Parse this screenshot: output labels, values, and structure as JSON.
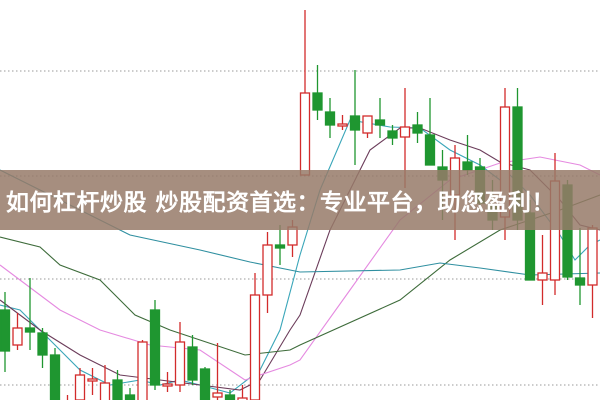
{
  "banner": {
    "title": "如何杠杆炒股 炒股配资首选：专业平台，助您盈利！"
  },
  "chart_data": {
    "type": "candlestick",
    "title": "",
    "xlabel": "",
    "ylabel": "",
    "ylim": [
      10,
      30
    ],
    "grid": true,
    "grid_levels": [
      26.45,
      21.2,
      16.05,
      10.75
    ],
    "colors": {
      "up": "#d22b2b",
      "down": "#1f9630",
      "grid": "#999999"
    },
    "candles": [
      {
        "o": 14.5,
        "h": 15.4,
        "l": 11.4,
        "c": 12.45
      },
      {
        "o": 12.75,
        "h": 14.35,
        "l": 12.5,
        "c": 13.6
      },
      {
        "o": 13.6,
        "h": 16.1,
        "l": 12.5,
        "c": 13.4
      },
      {
        "o": 13.35,
        "h": 13.6,
        "l": 11.6,
        "c": 12.25
      },
      {
        "o": 12.25,
        "h": 12.6,
        "l": 9.5,
        "c": 9.75
      },
      {
        "o": 9.5,
        "h": 10.25,
        "l": 9.25,
        "c": 9.9
      },
      {
        "o": 10,
        "h": 11.6,
        "l": 9.75,
        "c": 11.25
      },
      {
        "o": 10.95,
        "h": 11.6,
        "l": 10.25,
        "c": 11.05
      },
      {
        "o": 9.9,
        "h": 11.75,
        "l": 9.75,
        "c": 10.85
      },
      {
        "o": 11,
        "h": 11.5,
        "l": 9.75,
        "c": 9.9
      },
      {
        "o": 10.25,
        "h": 10.6,
        "l": 9.5,
        "c": 9.75
      },
      {
        "o": 9.9,
        "h": 13,
        "l": 9.75,
        "c": 12.9
      },
      {
        "o": 14.5,
        "h": 15,
        "l": 10.5,
        "c": 10.75
      },
      {
        "o": 10.7,
        "h": 11.4,
        "l": 10.4,
        "c": 10.8
      },
      {
        "o": 10.75,
        "h": 13.9,
        "l": 10.4,
        "c": 12.9
      },
      {
        "o": 12.65,
        "h": 13.25,
        "l": 10.75,
        "c": 11
      },
      {
        "o": 11.55,
        "h": 11.65,
        "l": 9.75,
        "c": 9.9
      },
      {
        "o": 10.15,
        "h": 12.85,
        "l": 9.9,
        "c": 10.35
      },
      {
        "o": 10.25,
        "h": 10.5,
        "l": 9.75,
        "c": 10
      },
      {
        "o": 9.75,
        "h": 10.75,
        "l": 9.5,
        "c": 10.1
      },
      {
        "o": 10,
        "h": 16.35,
        "l": 9.75,
        "c": 15.25
      },
      {
        "o": 15.25,
        "h": 18.4,
        "l": 14.35,
        "c": 17.75
      },
      {
        "o": 17.75,
        "h": 18.75,
        "l": 16.75,
        "c": 17.6
      },
      {
        "o": 17.75,
        "h": 19,
        "l": 17.15,
        "c": 18.65
      },
      {
        "o": 21.25,
        "h": 29.5,
        "l": 21.25,
        "c": 25.35
      },
      {
        "o": 25.35,
        "h": 26.75,
        "l": 24,
        "c": 24.5
      },
      {
        "o": 24.4,
        "h": 25.1,
        "l": 23.1,
        "c": 23.75
      },
      {
        "o": 23.7,
        "h": 24.25,
        "l": 23.5,
        "c": 23.8
      },
      {
        "o": 24.2,
        "h": 26.5,
        "l": 21.75,
        "c": 23.5
      },
      {
        "o": 23.35,
        "h": 24.2,
        "l": 23.1,
        "c": 24.2
      },
      {
        "o": 24,
        "h": 25.1,
        "l": 23.1,
        "c": 23.75
      },
      {
        "o": 23.45,
        "h": 23.75,
        "l": 22.75,
        "c": 23.1
      },
      {
        "o": 23.15,
        "h": 25.6,
        "l": 20.6,
        "c": 23.65
      },
      {
        "o": 23.75,
        "h": 24.4,
        "l": 22.85,
        "c": 23.35
      },
      {
        "o": 23.25,
        "h": 25.1,
        "l": 21.75,
        "c": 21.75
      },
      {
        "o": 21.65,
        "h": 22.5,
        "l": 19,
        "c": 21
      },
      {
        "o": 20.25,
        "h": 22.75,
        "l": 18,
        "c": 22.1
      },
      {
        "o": 21.9,
        "h": 23.25,
        "l": 21.25,
        "c": 21.5
      },
      {
        "o": 21.65,
        "h": 22.1,
        "l": 19.5,
        "c": 19.85
      },
      {
        "o": 19.75,
        "h": 21,
        "l": 18.5,
        "c": 19
      },
      {
        "o": 19.15,
        "h": 25.6,
        "l": 18,
        "c": 24.65
      },
      {
        "o": 24.65,
        "h": 25.6,
        "l": 18.5,
        "c": 19
      },
      {
        "o": 19.35,
        "h": 20,
        "l": 16,
        "c": 16
      },
      {
        "o": 16,
        "h": 18.25,
        "l": 14.75,
        "c": 16.35
      },
      {
        "o": 16,
        "h": 22.35,
        "l": 15.25,
        "c": 20.95
      },
      {
        "o": 20.75,
        "h": 21,
        "l": 16,
        "c": 16.15
      },
      {
        "o": 16.1,
        "h": 18.6,
        "l": 14.75,
        "c": 15.75
      },
      {
        "o": 15.75,
        "h": 18.75,
        "l": 14.1,
        "c": 18.6
      }
    ],
    "moving_averages": [
      {
        "color": "#3aa6b9",
        "points": [
          [
            -0.4,
            14.75
          ],
          [
            1.2,
            14.5
          ],
          [
            3.6,
            13
          ],
          [
            6,
            11.5
          ],
          [
            8.4,
            10.75
          ],
          [
            10.8,
            11
          ],
          [
            12.4,
            10.75
          ],
          [
            14,
            11
          ],
          [
            15.6,
            10.75
          ],
          [
            18,
            10.35
          ],
          [
            20.4,
            11.5
          ],
          [
            22,
            13.5
          ],
          [
            23.6,
            17.25
          ],
          [
            25.2,
            20.5
          ],
          [
            27.6,
            24
          ],
          [
            30.8,
            23.65
          ],
          [
            33.2,
            23.6
          ],
          [
            35.6,
            22.5
          ],
          [
            38,
            21.75
          ],
          [
            39.6,
            21
          ],
          [
            40.4,
            21.25
          ],
          [
            42,
            20.25
          ],
          [
            44.4,
            18.25
          ],
          [
            45.6,
            17
          ],
          [
            46.8,
            17.75
          ],
          [
            47.6,
            18
          ]
        ]
      },
      {
        "color": "#6b3c5a",
        "points": [
          [
            -0.4,
            15
          ],
          [
            2.8,
            13.5
          ],
          [
            6,
            12.25
          ],
          [
            9.2,
            11.25
          ],
          [
            12.4,
            11
          ],
          [
            15.6,
            10.75
          ],
          [
            18.8,
            10.5
          ],
          [
            20.4,
            11
          ],
          [
            22.8,
            13.5
          ],
          [
            23.6,
            14.25
          ],
          [
            26,
            18.5
          ],
          [
            29.2,
            22.5
          ],
          [
            31.6,
            23.6
          ],
          [
            33.2,
            23.6
          ],
          [
            35.6,
            23
          ],
          [
            38,
            22.5
          ],
          [
            39.6,
            21.9
          ],
          [
            42,
            21.5
          ],
          [
            44.4,
            20
          ],
          [
            46,
            18.75
          ],
          [
            47.6,
            18.5
          ]
        ]
      },
      {
        "color": "#e58ae0",
        "points": [
          [
            -0.4,
            16.75
          ],
          [
            4.4,
            14.5
          ],
          [
            7.6,
            13.5
          ],
          [
            11.6,
            12.75
          ],
          [
            15.6,
            12.5
          ],
          [
            19.2,
            11
          ],
          [
            22.8,
            11.75
          ],
          [
            23.6,
            12
          ],
          [
            27.6,
            15.5
          ],
          [
            31.6,
            19
          ],
          [
            35.6,
            21
          ],
          [
            39.6,
            21.85
          ],
          [
            42.8,
            22.15
          ],
          [
            46,
            21.75
          ],
          [
            47.6,
            21.25
          ]
        ]
      },
      {
        "color": "#3d6b3a",
        "points": [
          [
            -0.4,
            18.15
          ],
          [
            2.8,
            17.65
          ],
          [
            4.4,
            16.75
          ],
          [
            7.6,
            16
          ],
          [
            10.4,
            14.25
          ],
          [
            13.2,
            13.5
          ],
          [
            19.2,
            12.25
          ],
          [
            22.8,
            12.5
          ],
          [
            23.6,
            12.75
          ],
          [
            31.6,
            15
          ],
          [
            35.6,
            17
          ],
          [
            39.6,
            18.5
          ],
          [
            44.4,
            19.5
          ],
          [
            47.6,
            20.25
          ]
        ]
      },
      {
        "color": "#2f8fa0",
        "points": [
          [
            -0.4,
            21.5
          ],
          [
            10,
            18.25
          ],
          [
            15.6,
            17.5
          ],
          [
            19.6,
            16.9
          ],
          [
            23.6,
            16.4
          ],
          [
            31.6,
            16.5
          ],
          [
            34.8,
            16.85
          ],
          [
            38,
            16.6
          ],
          [
            42,
            16.25
          ],
          [
            47.6,
            16.35
          ]
        ]
      }
    ]
  }
}
